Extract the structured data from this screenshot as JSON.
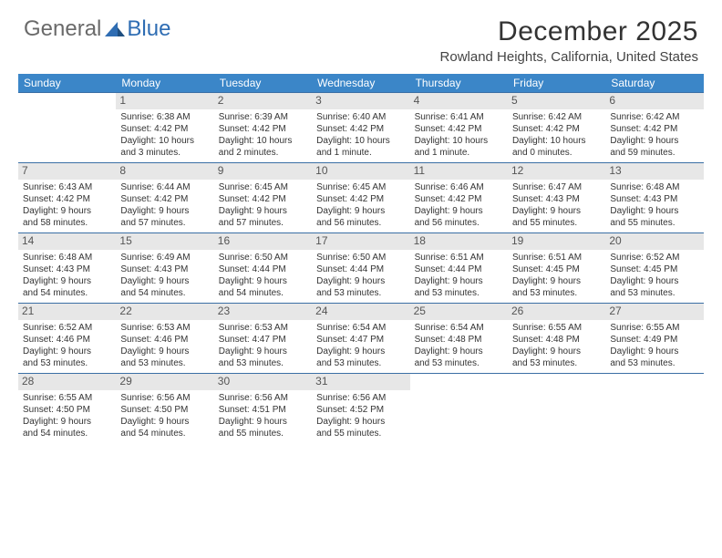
{
  "logo": {
    "general": "General",
    "blue": "Blue"
  },
  "title": "December 2025",
  "location": "Rowland Heights, California, United States",
  "header_bg": "#3b86c8",
  "daynum_bg": "#e7e7e7",
  "week_border": "#3b6fa5",
  "days_of_week": [
    "Sunday",
    "Monday",
    "Tuesday",
    "Wednesday",
    "Thursday",
    "Friday",
    "Saturday"
  ],
  "weeks": [
    [
      {
        "n": "",
        "lines": [
          "",
          "",
          "",
          ""
        ]
      },
      {
        "n": "1",
        "lines": [
          "Sunrise: 6:38 AM",
          "Sunset: 4:42 PM",
          "Daylight: 10 hours",
          "and 3 minutes."
        ]
      },
      {
        "n": "2",
        "lines": [
          "Sunrise: 6:39 AM",
          "Sunset: 4:42 PM",
          "Daylight: 10 hours",
          "and 2 minutes."
        ]
      },
      {
        "n": "3",
        "lines": [
          "Sunrise: 6:40 AM",
          "Sunset: 4:42 PM",
          "Daylight: 10 hours",
          "and 1 minute."
        ]
      },
      {
        "n": "4",
        "lines": [
          "Sunrise: 6:41 AM",
          "Sunset: 4:42 PM",
          "Daylight: 10 hours",
          "and 1 minute."
        ]
      },
      {
        "n": "5",
        "lines": [
          "Sunrise: 6:42 AM",
          "Sunset: 4:42 PM",
          "Daylight: 10 hours",
          "and 0 minutes."
        ]
      },
      {
        "n": "6",
        "lines": [
          "Sunrise: 6:42 AM",
          "Sunset: 4:42 PM",
          "Daylight: 9 hours",
          "and 59 minutes."
        ]
      }
    ],
    [
      {
        "n": "7",
        "lines": [
          "Sunrise: 6:43 AM",
          "Sunset: 4:42 PM",
          "Daylight: 9 hours",
          "and 58 minutes."
        ]
      },
      {
        "n": "8",
        "lines": [
          "Sunrise: 6:44 AM",
          "Sunset: 4:42 PM",
          "Daylight: 9 hours",
          "and 57 minutes."
        ]
      },
      {
        "n": "9",
        "lines": [
          "Sunrise: 6:45 AM",
          "Sunset: 4:42 PM",
          "Daylight: 9 hours",
          "and 57 minutes."
        ]
      },
      {
        "n": "10",
        "lines": [
          "Sunrise: 6:45 AM",
          "Sunset: 4:42 PM",
          "Daylight: 9 hours",
          "and 56 minutes."
        ]
      },
      {
        "n": "11",
        "lines": [
          "Sunrise: 6:46 AM",
          "Sunset: 4:42 PM",
          "Daylight: 9 hours",
          "and 56 minutes."
        ]
      },
      {
        "n": "12",
        "lines": [
          "Sunrise: 6:47 AM",
          "Sunset: 4:43 PM",
          "Daylight: 9 hours",
          "and 55 minutes."
        ]
      },
      {
        "n": "13",
        "lines": [
          "Sunrise: 6:48 AM",
          "Sunset: 4:43 PM",
          "Daylight: 9 hours",
          "and 55 minutes."
        ]
      }
    ],
    [
      {
        "n": "14",
        "lines": [
          "Sunrise: 6:48 AM",
          "Sunset: 4:43 PM",
          "Daylight: 9 hours",
          "and 54 minutes."
        ]
      },
      {
        "n": "15",
        "lines": [
          "Sunrise: 6:49 AM",
          "Sunset: 4:43 PM",
          "Daylight: 9 hours",
          "and 54 minutes."
        ]
      },
      {
        "n": "16",
        "lines": [
          "Sunrise: 6:50 AM",
          "Sunset: 4:44 PM",
          "Daylight: 9 hours",
          "and 54 minutes."
        ]
      },
      {
        "n": "17",
        "lines": [
          "Sunrise: 6:50 AM",
          "Sunset: 4:44 PM",
          "Daylight: 9 hours",
          "and 53 minutes."
        ]
      },
      {
        "n": "18",
        "lines": [
          "Sunrise: 6:51 AM",
          "Sunset: 4:44 PM",
          "Daylight: 9 hours",
          "and 53 minutes."
        ]
      },
      {
        "n": "19",
        "lines": [
          "Sunrise: 6:51 AM",
          "Sunset: 4:45 PM",
          "Daylight: 9 hours",
          "and 53 minutes."
        ]
      },
      {
        "n": "20",
        "lines": [
          "Sunrise: 6:52 AM",
          "Sunset: 4:45 PM",
          "Daylight: 9 hours",
          "and 53 minutes."
        ]
      }
    ],
    [
      {
        "n": "21",
        "lines": [
          "Sunrise: 6:52 AM",
          "Sunset: 4:46 PM",
          "Daylight: 9 hours",
          "and 53 minutes."
        ]
      },
      {
        "n": "22",
        "lines": [
          "Sunrise: 6:53 AM",
          "Sunset: 4:46 PM",
          "Daylight: 9 hours",
          "and 53 minutes."
        ]
      },
      {
        "n": "23",
        "lines": [
          "Sunrise: 6:53 AM",
          "Sunset: 4:47 PM",
          "Daylight: 9 hours",
          "and 53 minutes."
        ]
      },
      {
        "n": "24",
        "lines": [
          "Sunrise: 6:54 AM",
          "Sunset: 4:47 PM",
          "Daylight: 9 hours",
          "and 53 minutes."
        ]
      },
      {
        "n": "25",
        "lines": [
          "Sunrise: 6:54 AM",
          "Sunset: 4:48 PM",
          "Daylight: 9 hours",
          "and 53 minutes."
        ]
      },
      {
        "n": "26",
        "lines": [
          "Sunrise: 6:55 AM",
          "Sunset: 4:48 PM",
          "Daylight: 9 hours",
          "and 53 minutes."
        ]
      },
      {
        "n": "27",
        "lines": [
          "Sunrise: 6:55 AM",
          "Sunset: 4:49 PM",
          "Daylight: 9 hours",
          "and 53 minutes."
        ]
      }
    ],
    [
      {
        "n": "28",
        "lines": [
          "Sunrise: 6:55 AM",
          "Sunset: 4:50 PM",
          "Daylight: 9 hours",
          "and 54 minutes."
        ]
      },
      {
        "n": "29",
        "lines": [
          "Sunrise: 6:56 AM",
          "Sunset: 4:50 PM",
          "Daylight: 9 hours",
          "and 54 minutes."
        ]
      },
      {
        "n": "30",
        "lines": [
          "Sunrise: 6:56 AM",
          "Sunset: 4:51 PM",
          "Daylight: 9 hours",
          "and 55 minutes."
        ]
      },
      {
        "n": "31",
        "lines": [
          "Sunrise: 6:56 AM",
          "Sunset: 4:52 PM",
          "Daylight: 9 hours",
          "and 55 minutes."
        ]
      },
      {
        "n": "",
        "lines": [
          "",
          "",
          "",
          ""
        ]
      },
      {
        "n": "",
        "lines": [
          "",
          "",
          "",
          ""
        ]
      },
      {
        "n": "",
        "lines": [
          "",
          "",
          "",
          ""
        ]
      }
    ]
  ]
}
